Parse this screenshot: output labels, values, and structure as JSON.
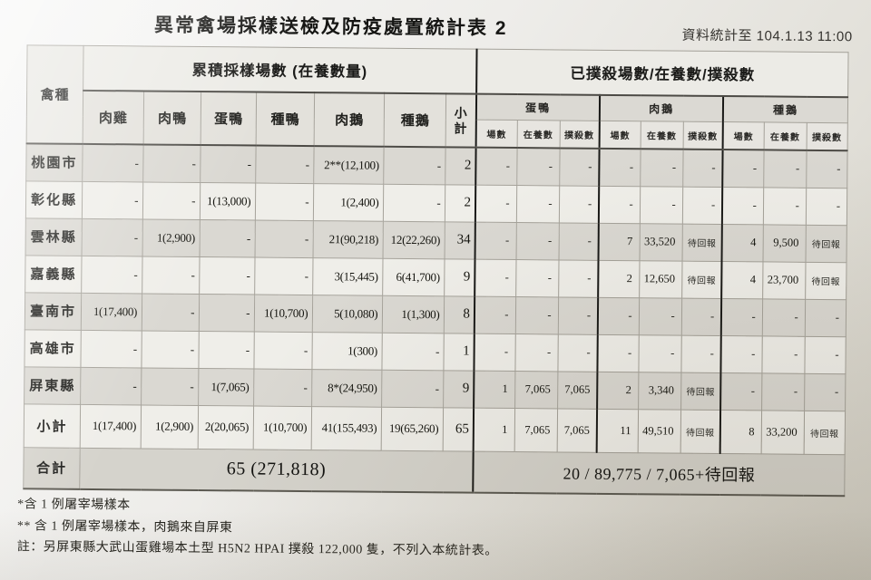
{
  "title": "異常禽場採樣送檢及防疫處置統計表 2",
  "timestamp_note": "資料統計至 104.1.13 11:00",
  "table": {
    "row_header": "禽種",
    "left_section": {
      "header": "累積採樣場數 (在養數量)",
      "columns": [
        "肉雞",
        "肉鴨",
        "蛋鴨",
        "種鴨",
        "肉鵝",
        "種鵝"
      ],
      "subtotal_label": "小計"
    },
    "right_section": {
      "header": "已撲殺場數/在養數/撲殺數",
      "groups": [
        "蛋鴨",
        "肉鵝",
        "種鵝"
      ],
      "sub_columns": [
        "場數",
        "在養數",
        "撲殺數"
      ]
    },
    "rows": [
      {
        "region": "桃園市",
        "left": [
          "-",
          "-",
          "-",
          "-",
          "2**(12,100)",
          "-"
        ],
        "subtotal": "2",
        "right": [
          "-",
          "-",
          "-",
          "-",
          "-",
          "-",
          "-",
          "-",
          "-"
        ]
      },
      {
        "region": "彰化縣",
        "left": [
          "-",
          "-",
          "1(13,000)",
          "-",
          "1(2,400)",
          "-"
        ],
        "subtotal": "2",
        "right": [
          "-",
          "-",
          "-",
          "-",
          "-",
          "-",
          "-",
          "-",
          "-"
        ]
      },
      {
        "region": "雲林縣",
        "left": [
          "-",
          "1(2,900)",
          "-",
          "-",
          "21(90,218)",
          "12(22,260)"
        ],
        "subtotal": "34",
        "right": [
          "-",
          "-",
          "-",
          "7",
          "33,520",
          "待回報",
          "4",
          "9,500",
          "待回報"
        ]
      },
      {
        "region": "嘉義縣",
        "left": [
          "-",
          "-",
          "-",
          "-",
          "3(15,445)",
          "6(41,700)"
        ],
        "subtotal": "9",
        "right": [
          "-",
          "-",
          "-",
          "2",
          "12,650",
          "待回報",
          "4",
          "23,700",
          "待回報"
        ]
      },
      {
        "region": "臺南市",
        "left": [
          "1(17,400)",
          "-",
          "-",
          "1(10,700)",
          "5(10,080)",
          "1(1,300)"
        ],
        "subtotal": "8",
        "right": [
          "-",
          "-",
          "-",
          "-",
          "-",
          "-",
          "-",
          "-",
          "-"
        ]
      },
      {
        "region": "高雄市",
        "left": [
          "-",
          "-",
          "-",
          "-",
          "1(300)",
          "-"
        ],
        "subtotal": "1",
        "right": [
          "-",
          "-",
          "-",
          "-",
          "-",
          "-",
          "-",
          "-",
          "-"
        ]
      },
      {
        "region": "屏東縣",
        "left": [
          "-",
          "-",
          "1(7,065)",
          "-",
          "8*(24,950)",
          "-"
        ],
        "subtotal": "9",
        "right": [
          "1",
          "7,065",
          "7,065",
          "2",
          "3,340",
          "待回報",
          "-",
          "-",
          "-"
        ]
      },
      {
        "region": "小計",
        "left": [
          "1(17,400)",
          "1(2,900)",
          "2(20,065)",
          "1(10,700)",
          "41(155,493)",
          "19(65,260)"
        ],
        "subtotal": "65",
        "right": [
          "1",
          "7,065",
          "7,065",
          "11",
          "49,510",
          "待回報",
          "8",
          "33,200",
          "待回報"
        ]
      }
    ],
    "total_row": {
      "label": "合計",
      "left_total": "65 (271,818)",
      "right_total": "20 / 89,775 / 7,065+待回報"
    }
  },
  "footnotes": [
    "*含 1 例屠宰場樣本",
    "** 含 1 例屠宰場樣本，肉鵝來自屏東",
    "註：另屏東縣大武山蛋雞場本土型 H5N2 HPAI 撲殺 122,000 隻，不列入本統計表。"
  ]
}
